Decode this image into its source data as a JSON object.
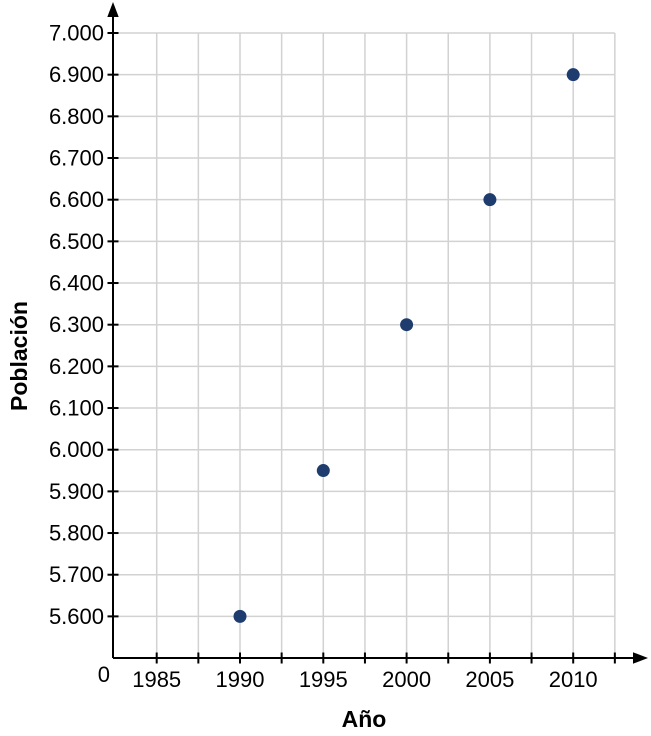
{
  "chart_data": {
    "type": "scatter",
    "title": "",
    "xlabel": "Año",
    "ylabel": "Población",
    "origin_label": "0",
    "x": [
      1990,
      1995,
      2000,
      2005,
      2010
    ],
    "y": [
      5600,
      5950,
      6300,
      6600,
      6900
    ],
    "points": [
      {
        "x": 1990,
        "y": 5600
      },
      {
        "x": 1995,
        "y": 5950
      },
      {
        "x": 2000,
        "y": 6300
      },
      {
        "x": 2005,
        "y": 6600
      },
      {
        "x": 2010,
        "y": 6900
      }
    ],
    "x_ticks": [
      {
        "value": 1985,
        "label": "1985"
      },
      {
        "value": 1990,
        "label": "1990"
      },
      {
        "value": 1995,
        "label": "1995"
      },
      {
        "value": 2000,
        "label": "2000"
      },
      {
        "value": 2005,
        "label": "2005"
      },
      {
        "value": 2010,
        "label": "2010"
      }
    ],
    "x_minor_step": 2.5,
    "x_grid_start": 1985,
    "x_grid_end": 2012.5,
    "y_ticks": [
      {
        "value": 7000,
        "label": "7.000"
      },
      {
        "value": 6900,
        "label": "6.900"
      },
      {
        "value": 6800,
        "label": "6.800"
      },
      {
        "value": 6700,
        "label": "6.700"
      },
      {
        "value": 6600,
        "label": "6.600"
      },
      {
        "value": 6500,
        "label": "6.500"
      },
      {
        "value": 6400,
        "label": "6.400"
      },
      {
        "value": 6300,
        "label": "6.300"
      },
      {
        "value": 6200,
        "label": "6.200"
      },
      {
        "value": 6100,
        "label": "6.100"
      },
      {
        "value": 6000,
        "label": "6.000"
      },
      {
        "value": 5900,
        "label": "5.900"
      },
      {
        "value": 5800,
        "label": "5.800"
      },
      {
        "value": 5700,
        "label": "5.700"
      },
      {
        "value": 5600,
        "label": "5.600"
      }
    ],
    "y_tick_step": 100,
    "grid": true,
    "legend": null,
    "colors": {
      "point": "#1e3c6e",
      "grid": "#d2d2d2",
      "axis": "#000000",
      "text": "#000000"
    }
  }
}
